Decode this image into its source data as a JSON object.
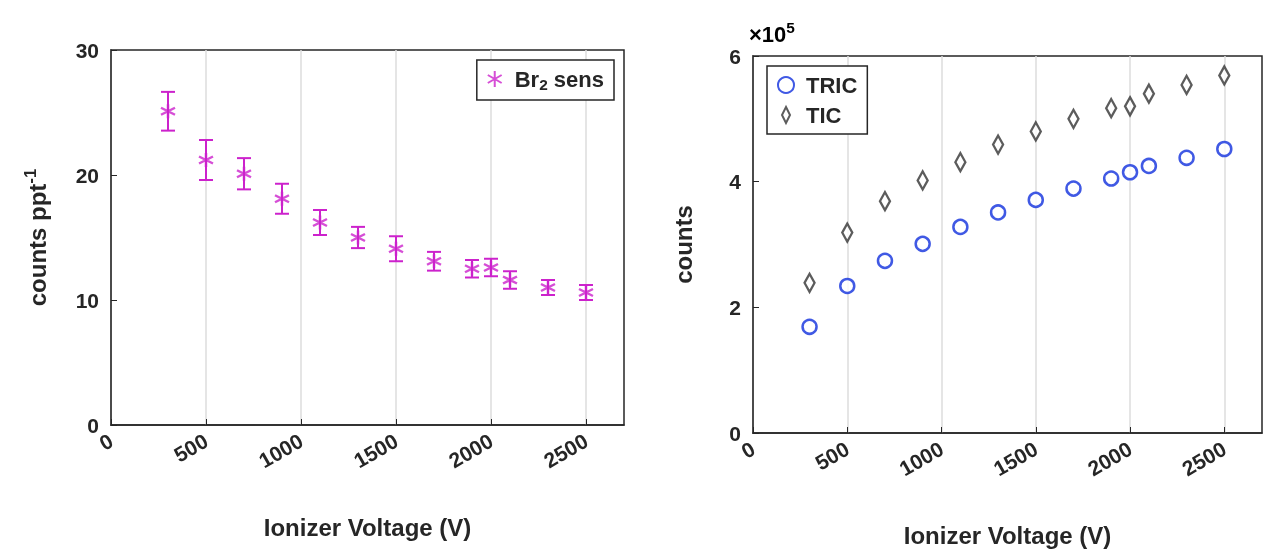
{
  "chart_data": [
    {
      "type": "scatter",
      "xlabel": "Ionizer Voltage (V)",
      "ylabel": "counts ppt$^{-1}$",
      "x": [
        300,
        500,
        700,
        900,
        1100,
        1300,
        1500,
        1700,
        1900,
        2000,
        2100,
        2300,
        2500
      ],
      "series": [
        {
          "name": "Br$_{2}$ sens",
          "color": "#cc22cc",
          "marker": "cross",
          "values": [
            25.1,
            21.2,
            20.1,
            18.1,
            16.2,
            15.0,
            14.1,
            13.1,
            12.5,
            12.6,
            11.6,
            11.0,
            10.6
          ],
          "errors": [
            1.55,
            1.6,
            1.25,
            1.2,
            1.0,
            0.85,
            1.0,
            0.75,
            0.7,
            0.7,
            0.7,
            0.6,
            0.6
          ]
        }
      ],
      "xlim": [
        0,
        2700
      ],
      "xticks": [
        0,
        500,
        1000,
        1500,
        2000,
        2500
      ],
      "ylim": [
        0,
        30
      ],
      "yticks": [
        0,
        10,
        20,
        30
      ],
      "grid": "x",
      "legend": "top right"
    },
    {
      "type": "scatter",
      "xlabel": "Ionizer Voltage (V)",
      "ylabel": "counts",
      "annotations": [
        "×10$^{5}$"
      ],
      "x": [
        300,
        500,
        700,
        900,
        1100,
        1300,
        1500,
        1700,
        1900,
        2000,
        2100,
        2300,
        2500
      ],
      "series": [
        {
          "name": "TRIC",
          "color": "#1030dd",
          "marker": "circle",
          "values": [
            1.69,
            2.34,
            2.74,
            3.01,
            3.28,
            3.51,
            3.71,
            3.89,
            4.05,
            4.15,
            4.25,
            4.38,
            4.52
          ]
        },
        {
          "name": "TIC",
          "color": "#333333",
          "marker": "diamond",
          "values": [
            2.39,
            3.19,
            3.69,
            4.02,
            4.31,
            4.59,
            4.8,
            5.0,
            5.17,
            5.2,
            5.4,
            5.54,
            5.69
          ]
        }
      ],
      "xlim": [
        0,
        2700
      ],
      "xticks": [
        0,
        500,
        1000,
        1500,
        2000,
        2500
      ],
      "ylim": [
        0,
        6
      ],
      "yticks": [
        0,
        2,
        4,
        6
      ],
      "grid": "x",
      "legend": "top left"
    }
  ]
}
